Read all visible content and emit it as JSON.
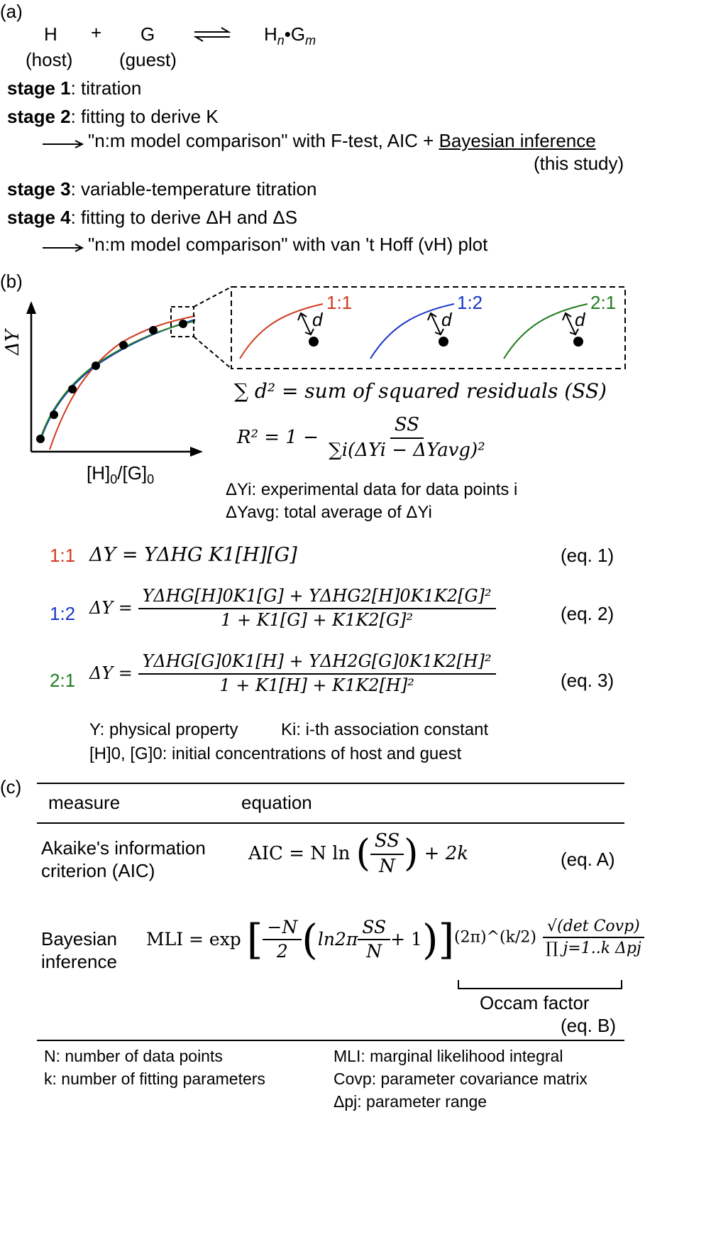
{
  "panel_a": {
    "label": "(a)",
    "host_symbol": "H",
    "host_desc": "(host)",
    "plus": "+",
    "guest_symbol": "G",
    "guest_desc": "(guest)",
    "complex": "Hn•Gm",
    "stage1_title": "stage 1",
    "stage1_text": ": titration",
    "stage2_title": "stage 2",
    "stage2_text": ": fitting to derive K",
    "stage2_arrow_text": "\"n:m model comparison\" with F-test, AIC + ",
    "stage2_underlined": "Bayesian inference",
    "stage2_note": "(this study)",
    "stage3_title": "stage 3",
    "stage3_text": ": variable-temperature titration",
    "stage4_title": "stage 4",
    "stage4_text": ": fitting to derive ΔH and ΔS",
    "stage4_arrow_text": "\"n:m model comparison\" with van 't Hoff (vH) plot"
  },
  "panel_b": {
    "label": "(b)",
    "y_axis": "ΔY",
    "x_axis": "[H]0/[G]0",
    "inset_labels": [
      "1:1",
      "1:2",
      "2:1"
    ],
    "d_label": "d",
    "ss_eq": "∑ d² = sum of squared residuals (SS)",
    "r2_eq_lhs": "R² = 1 −",
    "r2_num": "SS",
    "r2_den": "∑i(ΔYi − ΔYavg)²",
    "def1": "ΔYi: experimental data for data points i",
    "def2": "ΔYavg: total average of ΔYi",
    "eq1_label": "1:1",
    "eq1": "ΔY = YΔHG K1[H][G]",
    "eq1_tag": "(eq. 1)",
    "eq2_label": "1:2",
    "eq2_lhs": "ΔY =",
    "eq2_num": "YΔHG[H]0K1[G] + YΔHG2[H]0K1K2[G]²",
    "eq2_den": "1 + K1[G] + K1K2[G]²",
    "eq2_tag": "(eq. 2)",
    "eq3_label": "2:1",
    "eq3_lhs": "ΔY =",
    "eq3_num": "YΔHG[G]0K1[H] + YΔH2G[G]0K1K2[H]²",
    "eq3_den": "1 + K1[H] + K1K2[H]²",
    "eq3_tag": "(eq. 3)",
    "def_y": "Y: physical property",
    "def_k": "Ki: i-th association constant",
    "def_conc": "[H]0, [G]0: initial concentrations of host and guest"
  },
  "panel_c": {
    "label": "(c)",
    "col_measure": "measure",
    "col_equation": "equation",
    "aic_name_1": "Akaike's information",
    "aic_name_2": "criterion (AIC)",
    "aic_lhs": "AIC = N ln",
    "aic_num": "SS",
    "aic_den": "N",
    "aic_rhs": "+ 2k",
    "aic_tag": "(eq. A)",
    "bayes_name_1": "Bayesian",
    "bayes_name_2": "inference",
    "mli_lhs": "MLI = exp",
    "mli_frac_num": "−N",
    "mli_frac_den": "2",
    "mli_ln": "ln2π",
    "mli_ss_num": "SS",
    "mli_ss_den": "N",
    "mli_plus1": "+ 1",
    "occam_pre": "(2π)^(k/2)",
    "occam_num": "√(det Covp)",
    "occam_den": "∏ j=1..k Δpj",
    "occam_label": "Occam factor",
    "mli_tag": "(eq. B)",
    "foot_n": "N: number of data points",
    "foot_k": "k: number of fitting parameters",
    "foot_mli": "MLI: marginal likelihood integral",
    "foot_cov": "Covp: parameter covariance matrix",
    "foot_dp": "Δpj: parameter range"
  },
  "colors": {
    "red": "#d13a1f",
    "blue": "#1a37c8",
    "green": "#1f7d1f"
  }
}
